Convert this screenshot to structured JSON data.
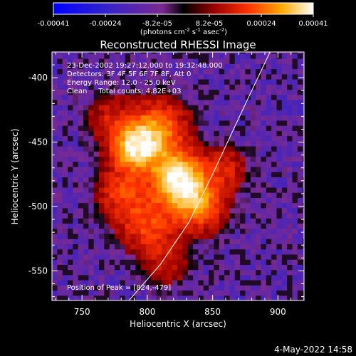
{
  "chart_data": {
    "type": "heatmap",
    "title": "Reconstructed RHESSI Image",
    "xlabel": "Heliocentric X (arcsec)",
    "ylabel": "Heliocentric Y (arcsec)",
    "xlim": [
      727,
      920
    ],
    "ylim": [
      -573,
      -380
    ],
    "x_ticks": [
      "750",
      "800",
      "850",
      "900"
    ],
    "y_ticks": [
      "-400",
      "-450",
      "-500",
      "-550"
    ],
    "colorbar": {
      "ticks": [
        "-0.00041",
        "-0.00024",
        "-8.2e-05",
        "8.2e-05",
        "0.00024",
        "0.00041"
      ],
      "range": [
        -0.00041,
        0.00041
      ],
      "unit_label": "(photons cm",
      "unit_sup1": "-2",
      "unit_mid": " s",
      "unit_sup2": "-1",
      "unit_mid2": " asec",
      "unit_sup3": "-2",
      "unit_end": ")"
    },
    "annotations": [
      "23-Dec-2002 19:27:12.000 to 19:32:48.000",
      "Detectors: 3F 4F 5F 6F 7F 8F, Att 0",
      "Energy Range: 12.0 - 25.0 keV",
      "Clean     Total counts: 4.82E+03"
    ],
    "peak_label": "Position of Peak = [824,-479]",
    "peak": [
      824,
      -479
    ],
    "limb_points": [
      [
        786,
        -573
      ],
      [
        810,
        -545
      ],
      [
        832,
        -512
      ],
      [
        850,
        -475
      ],
      [
        866,
        -440
      ],
      [
        880,
        -410
      ],
      [
        894,
        -380
      ]
    ],
    "sources": [
      {
        "x": 824,
        "y": -479,
        "amp": 1.0,
        "sigma": 14
      },
      {
        "x": 790,
        "y": -455,
        "amp": 0.78,
        "sigma": 13
      },
      {
        "x": 808,
        "y": -440,
        "amp": 0.6,
        "sigma": 16
      },
      {
        "x": 840,
        "y": -500,
        "amp": 0.55,
        "sigma": 14
      },
      {
        "x": 800,
        "y": -515,
        "amp": 0.45,
        "sigma": 15
      },
      {
        "x": 780,
        "y": -490,
        "amp": 0.4,
        "sigma": 13
      },
      {
        "x": 770,
        "y": -430,
        "amp": 0.25,
        "sigma": 12
      },
      {
        "x": 860,
        "y": -470,
        "amp": 0.3,
        "sigma": 12
      },
      {
        "x": 815,
        "y": -545,
        "amp": 0.25,
        "sigma": 12
      }
    ]
  },
  "footer": {
    "date": "4-May-2022 14:58"
  }
}
